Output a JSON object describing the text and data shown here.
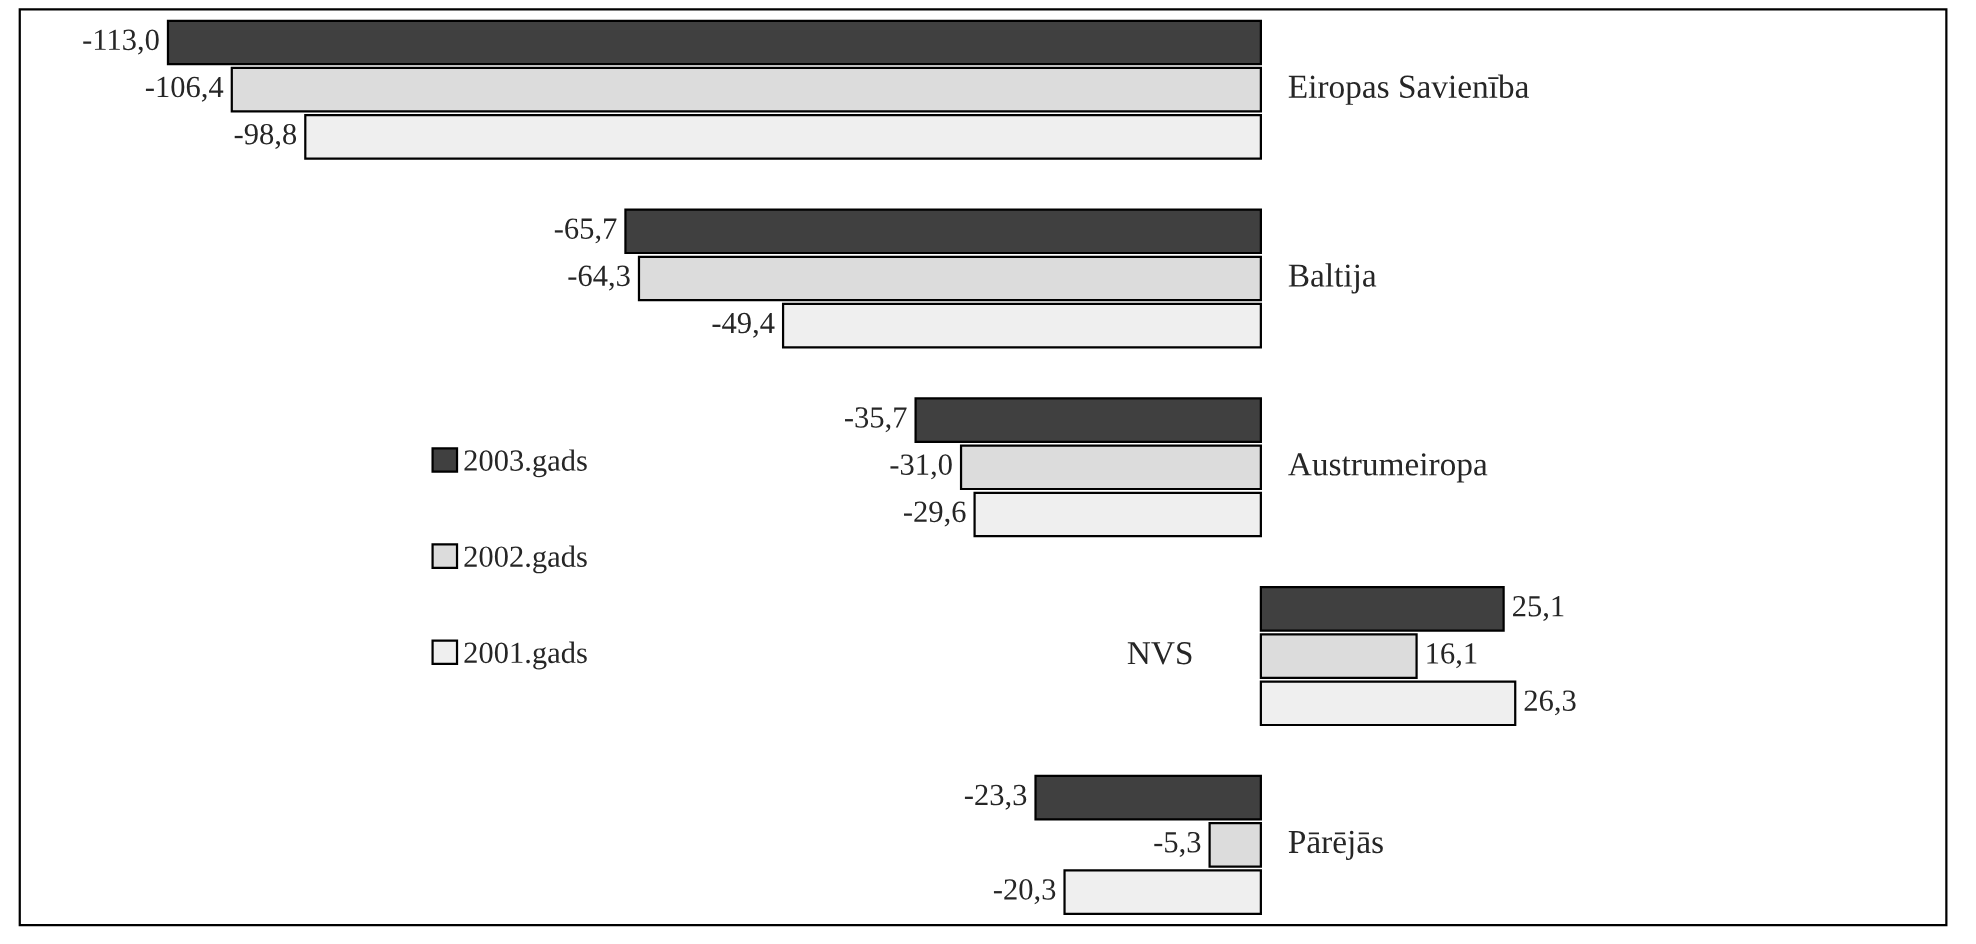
{
  "chart_data": {
    "type": "bar",
    "orientation": "horizontal",
    "legend": "left",
    "tick_labels": false,
    "categories": [
      "Eiropas Savienība",
      "Baltija",
      "Austrumeiropa",
      "NVS",
      "Pārējās"
    ],
    "series": [
      {
        "name": "2003.gads",
        "color": "#404040",
        "values": [
          -113.0,
          -65.7,
          -35.7,
          25.1,
          -23.3
        ],
        "value_labels": [
          "-113,0",
          "-65,7",
          "-35,7",
          "25,1",
          "-23,3"
        ]
      },
      {
        "name": "2002.gads",
        "color": "#dcdcdc",
        "values": [
          -106.4,
          -64.3,
          -31.0,
          16.1,
          -5.3
        ],
        "value_labels": [
          "-106,4",
          "-64,3",
          "-31,0",
          "16,1",
          "-5,3"
        ]
      },
      {
        "name": "2001.gads",
        "color": "#efefef",
        "values": [
          -98.8,
          -49.4,
          -29.6,
          26.3,
          -20.3
        ],
        "value_labels": [
          "-98,8",
          "-49,4",
          "-29,6",
          "26,3",
          "-20,3"
        ]
      }
    ]
  }
}
